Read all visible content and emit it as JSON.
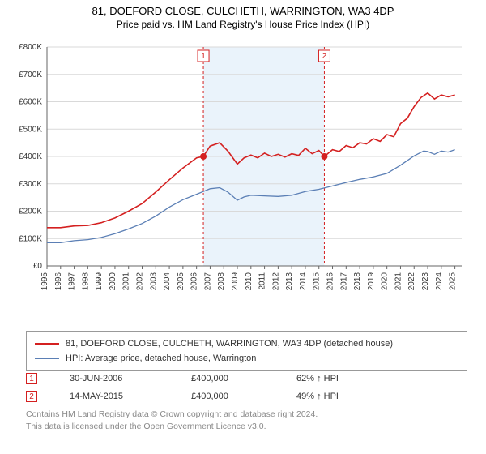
{
  "header": {
    "title_line1": "81, DOEFORD CLOSE, CULCHETH, WARRINGTON, WA3 4DP",
    "title_line2": "Price paid vs. HM Land Registry's House Price Index (HPI)"
  },
  "chart": {
    "type": "line",
    "background_color": "#ffffff",
    "shaded_band_color": "#eaf3fb",
    "grid_color": "#d9d9d9",
    "axis_color": "#666666",
    "tick_font_size": 10,
    "tick_color": "#333333",
    "y_axis": {
      "ticks": [
        0,
        100000,
        200000,
        300000,
        400000,
        500000,
        600000,
        700000,
        800000
      ],
      "labels": [
        "£0",
        "£100K",
        "£200K",
        "£300K",
        "£400K",
        "£500K",
        "£600K",
        "£700K",
        "£800K"
      ],
      "min": 0,
      "max": 800000
    },
    "x_axis": {
      "min": 1995,
      "max": 2025.5,
      "ticks": [
        1995,
        1996,
        1997,
        1998,
        1999,
        2000,
        2001,
        2002,
        2003,
        2004,
        2005,
        2006,
        2007,
        2008,
        2009,
        2010,
        2011,
        2012,
        2013,
        2014,
        2015,
        2016,
        2017,
        2018,
        2019,
        2020,
        2021,
        2022,
        2023,
        2024,
        2025
      ],
      "label_rotation": -90
    },
    "shaded_band": {
      "xstart": 2006.5,
      "xend": 2015.4
    },
    "vmarkers": [
      {
        "x": 2006.5,
        "label": "1",
        "color": "#d42020",
        "dash": "3,3"
      },
      {
        "x": 2015.4,
        "label": "2",
        "color": "#d42020",
        "dash": "3,3"
      }
    ],
    "series": [
      {
        "name": "property",
        "color": "#d42020",
        "width": 1.6,
        "points": [
          [
            1995,
            140000
          ],
          [
            1996,
            140000
          ],
          [
            1997,
            146000
          ],
          [
            1998,
            148000
          ],
          [
            1999,
            158000
          ],
          [
            2000,
            175000
          ],
          [
            2001,
            200000
          ],
          [
            2002,
            228000
          ],
          [
            2003,
            270000
          ],
          [
            2004,
            315000
          ],
          [
            2005,
            358000
          ],
          [
            2006,
            395000
          ],
          [
            2006.5,
            400000
          ],
          [
            2007,
            438000
          ],
          [
            2007.7,
            450000
          ],
          [
            2008.3,
            420000
          ],
          [
            2009,
            372000
          ],
          [
            2009.5,
            395000
          ],
          [
            2010,
            405000
          ],
          [
            2010.5,
            395000
          ],
          [
            2011,
            412000
          ],
          [
            2011.5,
            400000
          ],
          [
            2012,
            408000
          ],
          [
            2012.5,
            398000
          ],
          [
            2013,
            410000
          ],
          [
            2013.5,
            404000
          ],
          [
            2014,
            430000
          ],
          [
            2014.5,
            410000
          ],
          [
            2015,
            422000
          ],
          [
            2015.4,
            400000
          ],
          [
            2016,
            425000
          ],
          [
            2016.5,
            418000
          ],
          [
            2017,
            440000
          ],
          [
            2017.5,
            432000
          ],
          [
            2018,
            450000
          ],
          [
            2018.5,
            446000
          ],
          [
            2019,
            465000
          ],
          [
            2019.5,
            455000
          ],
          [
            2020,
            480000
          ],
          [
            2020.5,
            472000
          ],
          [
            2021,
            520000
          ],
          [
            2021.5,
            540000
          ],
          [
            2022,
            582000
          ],
          [
            2022.5,
            615000
          ],
          [
            2023,
            632000
          ],
          [
            2023.5,
            610000
          ],
          [
            2024,
            625000
          ],
          [
            2024.5,
            618000
          ],
          [
            2025,
            625000
          ]
        ],
        "dot_points": [
          [
            2006.5,
            400000
          ],
          [
            2015.4,
            400000
          ]
        ],
        "dot_color": "#d42020",
        "dot_radius": 4
      },
      {
        "name": "hpi",
        "color": "#5b7fb5",
        "width": 1.3,
        "points": [
          [
            1995,
            85000
          ],
          [
            1996,
            85000
          ],
          [
            1997,
            92000
          ],
          [
            1998,
            96000
          ],
          [
            1999,
            104000
          ],
          [
            2000,
            118000
          ],
          [
            2001,
            135000
          ],
          [
            2002,
            155000
          ],
          [
            2003,
            182000
          ],
          [
            2004,
            215000
          ],
          [
            2005,
            242000
          ],
          [
            2006,
            262000
          ],
          [
            2007,
            282000
          ],
          [
            2007.7,
            286000
          ],
          [
            2008.3,
            270000
          ],
          [
            2009,
            240000
          ],
          [
            2009.5,
            252000
          ],
          [
            2010,
            258000
          ],
          [
            2011,
            256000
          ],
          [
            2012,
            254000
          ],
          [
            2013,
            258000
          ],
          [
            2014,
            272000
          ],
          [
            2015,
            280000
          ],
          [
            2016,
            292000
          ],
          [
            2017,
            305000
          ],
          [
            2018,
            316000
          ],
          [
            2019,
            325000
          ],
          [
            2020,
            338000
          ],
          [
            2021,
            368000
          ],
          [
            2022,
            402000
          ],
          [
            2022.7,
            420000
          ],
          [
            2023,
            418000
          ],
          [
            2023.5,
            408000
          ],
          [
            2024,
            420000
          ],
          [
            2024.5,
            416000
          ],
          [
            2025,
            425000
          ]
        ]
      }
    ]
  },
  "legend": {
    "items": [
      {
        "color": "#d42020",
        "label": "81, DOEFORD CLOSE, CULCHETH, WARRINGTON, WA3 4DP (detached house)"
      },
      {
        "color": "#5b7fb5",
        "label": "HPI: Average price, detached house, Warrington"
      }
    ]
  },
  "marker_table": {
    "rows": [
      {
        "num": "1",
        "color": "#d42020",
        "date": "30-JUN-2006",
        "price": "£400,000",
        "pct": "62% ↑ HPI"
      },
      {
        "num": "2",
        "color": "#d42020",
        "date": "14-MAY-2015",
        "price": "£400,000",
        "pct": "49% ↑ HPI"
      }
    ]
  },
  "footer": {
    "line1": "Contains HM Land Registry data © Crown copyright and database right 2024.",
    "line2": "This data is licensed under the Open Government Licence v3.0."
  }
}
